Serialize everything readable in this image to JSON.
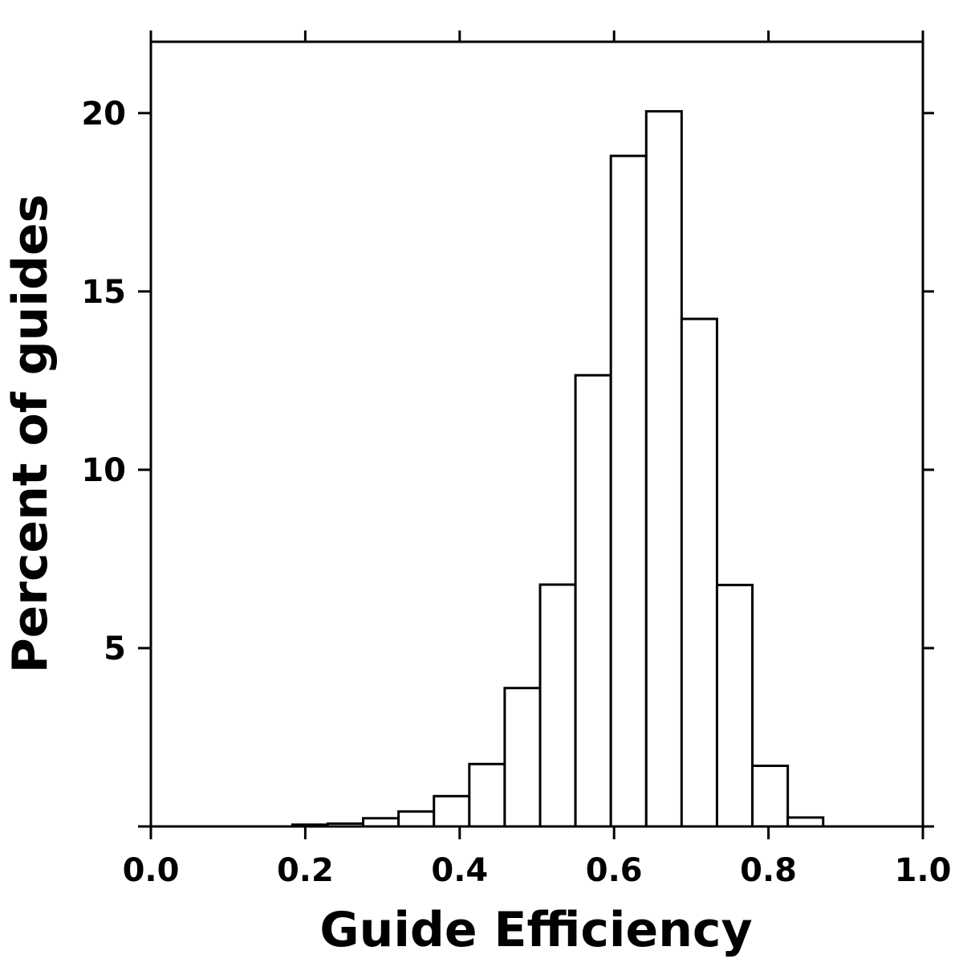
{
  "chart_data": {
    "type": "bar",
    "histogram": true,
    "title": "",
    "xlabel": "Guide Efficiency",
    "ylabel": "Percent of guides",
    "xlim": [
      0.0,
      1.0
    ],
    "ylim": [
      0,
      22
    ],
    "grid": false,
    "legend": "none",
    "x_ticks": [
      0.0,
      0.2,
      0.4,
      0.6,
      0.8,
      1.0
    ],
    "x_tick_labels": [
      "0.0",
      "0.2",
      "0.4",
      "0.6",
      "0.8",
      "1.0"
    ],
    "y_ticks": [
      5,
      10,
      15,
      20
    ],
    "y_tick_labels": [
      "5",
      "10",
      "15",
      "20"
    ],
    "bin_width": 0.04583,
    "bins": [
      {
        "start": 0.0,
        "value": 0.0
      },
      {
        "start": 0.04583,
        "value": 0.0
      },
      {
        "start": 0.09167,
        "value": 0.0
      },
      {
        "start": 0.1375,
        "value": 0.0
      },
      {
        "start": 0.18333,
        "value": 0.05
      },
      {
        "start": 0.22917,
        "value": 0.08
      },
      {
        "start": 0.275,
        "value": 0.23
      },
      {
        "start": 0.32083,
        "value": 0.42
      },
      {
        "start": 0.36667,
        "value": 0.85
      },
      {
        "start": 0.4125,
        "value": 1.75
      },
      {
        "start": 0.45833,
        "value": 3.88
      },
      {
        "start": 0.50417,
        "value": 6.78
      },
      {
        "start": 0.55,
        "value": 12.65
      },
      {
        "start": 0.59583,
        "value": 18.8
      },
      {
        "start": 0.64167,
        "value": 20.05
      },
      {
        "start": 0.6875,
        "value": 14.23
      },
      {
        "start": 0.73333,
        "value": 6.77
      },
      {
        "start": 0.77917,
        "value": 1.7
      },
      {
        "start": 0.825,
        "value": 0.25
      },
      {
        "start": 0.87083,
        "value": 0.0
      },
      {
        "start": 0.91667,
        "value": 0.0
      },
      {
        "start": 0.9625,
        "value": 0.0
      }
    ],
    "colors": {
      "bar_fill": "#ffffff",
      "bar_stroke": "#000000",
      "axis": "#000000"
    }
  }
}
